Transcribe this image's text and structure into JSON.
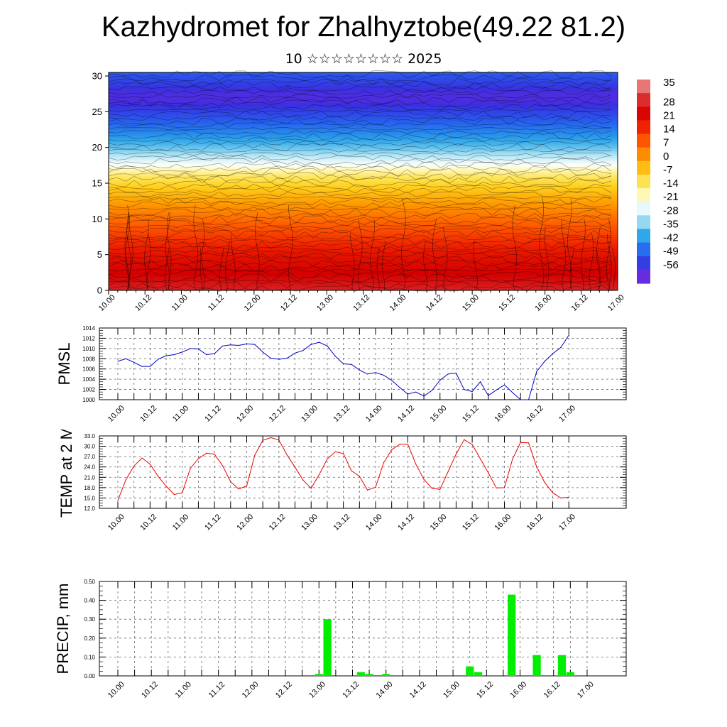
{
  "title": "Kazhydromet for Zhalhyztobe(49.22 81.2)",
  "subtitle": "10 ☆☆☆☆☆☆☆☆ 2025",
  "time_labels": [
    "10.00",
    "10.12",
    "11.00",
    "11.12",
    "12.00",
    "12.12",
    "13.00",
    "13.12",
    "14.00",
    "14.12",
    "15.00",
    "15.12",
    "16.00",
    "16.12",
    "17.00"
  ],
  "chart_data": [
    {
      "type": "heatmap",
      "title": "",
      "xlabel": "",
      "ylabel": "",
      "x_categories": [
        "10.00",
        "10.12",
        "11.00",
        "11.12",
        "12.00",
        "12.12",
        "13.00",
        "13.12",
        "14.00",
        "14.12",
        "15.00",
        "15.12",
        "16.00",
        "16.12",
        "17.00"
      ],
      "ylim": [
        0,
        30.5
      ],
      "yticks": [
        0,
        5,
        10,
        15,
        20,
        25,
        30
      ],
      "colorbar": {
        "labels": [
          "35",
          "28",
          "21",
          "14",
          "7",
          "0",
          "-7",
          "-14",
          "-21",
          "-28",
          "-35",
          "-42",
          "-49",
          "-56"
        ],
        "min": -63,
        "max": 42,
        "colors": [
          "#8a2be2",
          "#3a2ee0",
          "#2563f0",
          "#2aa6ea",
          "#9fdff2",
          "#ffffff",
          "#fff28a",
          "#ffd21e",
          "#ff9a00",
          "#ff5a00",
          "#f02000",
          "#d40000",
          "#e04040",
          "#f0a0a0"
        ]
      },
      "temperature_profile": [
        {
          "z": 0,
          "t": 30
        },
        {
          "z": 5,
          "t": 21
        },
        {
          "z": 9,
          "t": 10
        },
        {
          "z": 12,
          "t": 2
        },
        {
          "z": 14.5,
          "t": -6
        },
        {
          "z": 16,
          "t": -12
        },
        {
          "z": 17.5,
          "t": -22
        },
        {
          "z": 20,
          "t": -35
        },
        {
          "z": 22.5,
          "t": -44
        },
        {
          "z": 25,
          "t": -52
        },
        {
          "z": 27,
          "t": -58
        },
        {
          "z": 30.5,
          "t": -48
        }
      ]
    },
    {
      "type": "line",
      "title": "",
      "ylabel": "PMSL",
      "ylim": [
        1000,
        1014
      ],
      "yticks": [
        1000,
        1002,
        1004,
        1006,
        1008,
        1010,
        1012,
        1014
      ],
      "decimals": 0,
      "color": "#0000cc",
      "x_start": 0,
      "x_step": 0.125,
      "values": [
        1007.5,
        1008,
        1007.3,
        1006.5,
        1006.5,
        1007.9,
        1008.6,
        1008.8,
        1009.3,
        1010,
        1009.9,
        1008.8,
        1009,
        1010.5,
        1010.7,
        1010.6,
        1010.9,
        1010.8,
        1009.3,
        1008.1,
        1007.9,
        1008.1,
        1009.1,
        1009.6,
        1010.8,
        1011.2,
        1010.5,
        1008.5,
        1007,
        1006.9,
        1005.8,
        1005,
        1005.3,
        1004.8,
        1003.8,
        1002.4,
        1001.1,
        1001.5,
        1000.7,
        1001.8,
        1003.8,
        1005,
        1005.2,
        1002,
        1001.6,
        1003.5,
        1000.8,
        1001.9,
        1002.9,
        1001.4,
        1000,
        1000,
        1005.5,
        1007.5,
        1009,
        1010.2,
        1012.6
      ]
    },
    {
      "type": "line",
      "title": "",
      "ylabel": "TEMP at 2 M",
      "ylim": [
        12,
        33
      ],
      "yticks": [
        12,
        15,
        18,
        21,
        24,
        27,
        30,
        33
      ],
      "decimals": 1,
      "color": "#ee0000",
      "x_start": 0,
      "x_step": 0.125,
      "values": [
        14.3,
        20.3,
        24.3,
        26.6,
        24.8,
        21.3,
        18.4,
        16,
        16.5,
        23.6,
        26.4,
        28,
        27.7,
        24.4,
        19.7,
        17.6,
        18.5,
        27.4,
        31.7,
        32.5,
        31.8,
        27.5,
        23.9,
        20.2,
        17.8,
        21.8,
        26.3,
        28.4,
        27.9,
        22.9,
        21.3,
        17.3,
        18.1,
        25.2,
        29,
        30.6,
        30.6,
        24.8,
        20.4,
        17.8,
        17.5,
        22.6,
        27.7,
        31.9,
        30.5,
        26.4,
        22.3,
        17.9,
        18,
        26.2,
        31.1,
        31,
        24,
        19.5,
        16.5,
        15,
        15.2
      ]
    },
    {
      "type": "bar",
      "title": "",
      "ylabel": "PRECIP, mm",
      "ylim": [
        0,
        0.5
      ],
      "yticks": [
        0,
        0.1,
        0.2,
        0.3,
        0.4,
        0.5
      ],
      "decimals": 2,
      "color": "#00ee00",
      "x_start": 0,
      "x_step": 0.125,
      "values": [
        0,
        0,
        0,
        0,
        0,
        0,
        0,
        0,
        0,
        0,
        0,
        0,
        0,
        0,
        0,
        0,
        0,
        0,
        0,
        0,
        0,
        0,
        0,
        0,
        0.01,
        0.3,
        0,
        0,
        0,
        0.02,
        0.01,
        0,
        0.01,
        0,
        0,
        0,
        0,
        0,
        0,
        0,
        0,
        0,
        0.05,
        0.02,
        0,
        0,
        0,
        0.43,
        0,
        0,
        0.11,
        0,
        0,
        0.11,
        0.02,
        0,
        0
      ]
    }
  ]
}
